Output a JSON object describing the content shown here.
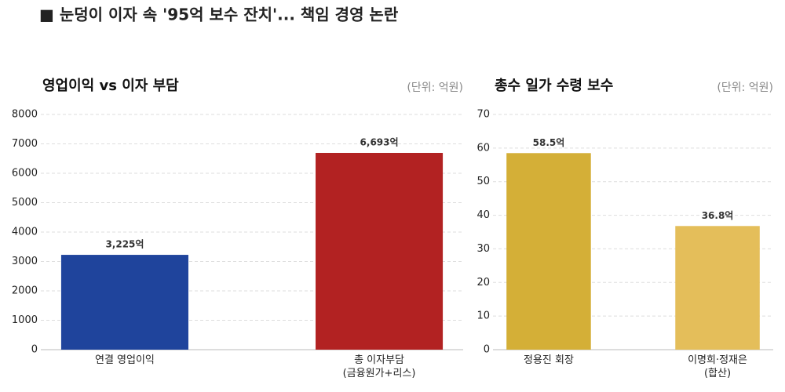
{
  "title": "■ 눈덩이 이자 속 '95억 보수 잔치'... 책임 경영 논란",
  "chart_data": [
    {
      "type": "bar",
      "title": "영업이익 vs 이자 부담",
      "unit": "(단위: 억원)",
      "categories": [
        "연결 영업이익",
        "총 이자부담\n(금융원가+리스)"
      ],
      "values": [
        3225,
        6693
      ],
      "value_labels": [
        "3,225억",
        "6,693억"
      ],
      "colors": [
        "#1f449c",
        "#b22222"
      ],
      "ylim": [
        0,
        8000
      ],
      "yticks": [
        0,
        1000,
        2000,
        3000,
        4000,
        5000,
        6000,
        7000,
        8000
      ],
      "grid": true
    },
    {
      "type": "bar",
      "title": "총수 일가 수령 보수",
      "unit": "(단위: 억원)",
      "categories": [
        "정용진 회장",
        "이명희·정재은\n(합산)"
      ],
      "values": [
        58.5,
        36.8
      ],
      "value_labels": [
        "58.5억",
        "36.8억"
      ],
      "colors": [
        "#d4af37",
        "#e4be5a"
      ],
      "ylim": [
        0,
        70
      ],
      "yticks": [
        0,
        10,
        20,
        30,
        40,
        50,
        60,
        70
      ],
      "grid": true
    }
  ]
}
